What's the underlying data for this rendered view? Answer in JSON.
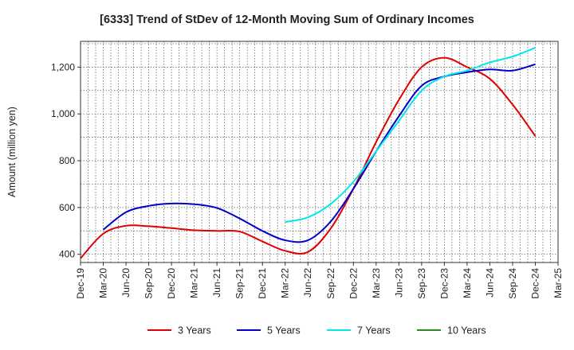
{
  "chart_data": {
    "type": "line",
    "title": "[6333]  Trend of StDev of 12-Month Moving Sum of Ordinary Incomes",
    "xlabel": "",
    "ylabel": "Amount (million yen)",
    "ylim": [
      365,
      1310
    ],
    "yticks": [
      400,
      600,
      800,
      1000,
      1200
    ],
    "ytick_labels": [
      "400",
      "600",
      "800",
      "1,000",
      "1,200"
    ],
    "x": [
      "Dec-19",
      "Mar-20",
      "Jun-20",
      "Sep-20",
      "Dec-20",
      "Mar-21",
      "Jun-21",
      "Sep-21",
      "Dec-21",
      "Mar-22",
      "Jun-22",
      "Sep-22",
      "Dec-22",
      "Mar-23",
      "Jun-23",
      "Sep-23",
      "Dec-23",
      "Mar-24",
      "Jun-24",
      "Sep-24",
      "Dec-24",
      "Mar-25"
    ],
    "grid": true,
    "legend_position": "bottom",
    "series": [
      {
        "name": "3 Years",
        "color": "#e00000",
        "values": [
          383,
          488,
          522,
          520,
          512,
          503,
          500,
          497,
          455,
          415,
          410,
          510,
          680,
          880,
          1060,
          1200,
          1240,
          1200,
          1150,
          1040,
          905,
          null
        ]
      },
      {
        "name": "5 Years",
        "color": "#0000cc",
        "values": [
          null,
          505,
          580,
          607,
          617,
          614,
          598,
          553,
          500,
          460,
          460,
          540,
          680,
          840,
          990,
          1120,
          1160,
          1178,
          1190,
          1185,
          1212,
          null
        ]
      },
      {
        "name": "7 Years",
        "color": "#00e8e8",
        "values": [
          null,
          null,
          null,
          null,
          null,
          null,
          null,
          null,
          null,
          538,
          558,
          615,
          710,
          840,
          970,
          1100,
          1160,
          1185,
          1220,
          1245,
          1283,
          null
        ]
      },
      {
        "name": "10 Years",
        "color": "#228b22",
        "values": [
          null,
          null,
          null,
          null,
          null,
          null,
          null,
          null,
          null,
          null,
          null,
          null,
          null,
          null,
          null,
          null,
          null,
          null,
          null,
          null,
          null,
          null
        ]
      }
    ]
  }
}
